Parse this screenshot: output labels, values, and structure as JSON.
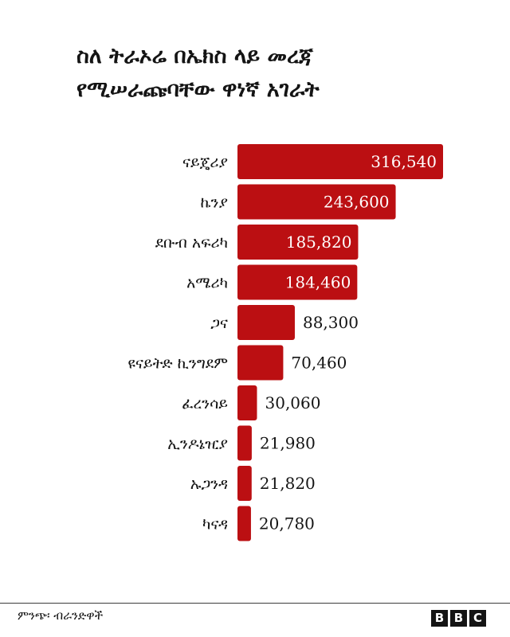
{
  "title": {
    "line1": "ስለ ትራኦሬ በኤክስ ላይ መረጃ",
    "line2": "የሚሠራጩባቸው ዋነኛ አገራት"
  },
  "source": "ምንጭ፡ ብራንድዋች",
  "logo_letters": [
    "B",
    "B",
    "C"
  ],
  "colors": {
    "bar": "#bb0f12",
    "text": "#141414",
    "inside_label": "#ffffff"
  },
  "chart_data": {
    "type": "bar",
    "orientation": "horizontal",
    "categories": [
      "ናይጄሪያ",
      "ኬንያ",
      "ደቡብ አፍሪካ",
      "አሜሪካ",
      "ጋና",
      "ዩናይትድ ኪንግደም",
      "ፈረንሳይ",
      "ኢንዶኔዢያ",
      "ኡጋንዳ",
      "ካናዳ"
    ],
    "values": [
      316540,
      243600,
      185820,
      184460,
      88300,
      70460,
      30060,
      21980,
      21820,
      20780
    ],
    "value_labels": [
      "316,540",
      "243,600",
      "185,820",
      "184,460",
      "88,300",
      "70,460",
      "30,060",
      "21,980",
      "21,820",
      "20,780"
    ],
    "xlim": [
      0,
      316540
    ],
    "grid": false,
    "legend": "none"
  }
}
